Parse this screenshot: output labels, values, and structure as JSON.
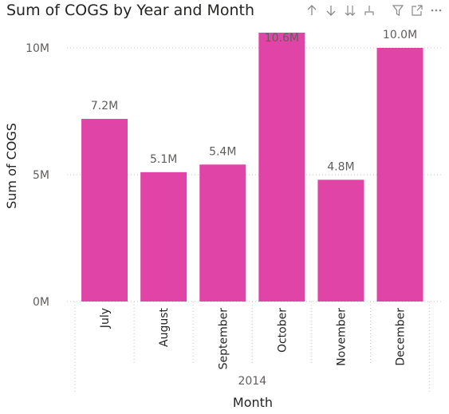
{
  "visual": {
    "title": "Sum of COGS by Year and Month",
    "icons": [
      "sort-up-icon",
      "sort-down-icon",
      "expand-all-down-icon",
      "drill-hierarchy-icon",
      "filter-icon",
      "focus-mode-icon",
      "more-options-icon"
    ],
    "colors": {
      "bar": "#E044A7",
      "grid": "#C8C6C4",
      "text": "#252423",
      "label": "#605E5C",
      "icon": "#8A8886"
    }
  },
  "chart_data": {
    "type": "bar",
    "title": "Sum of COGS by Year and Month",
    "xlabel": "Month",
    "ylabel": "Sum of COGS",
    "x_group_label": "2014",
    "categories": [
      "July",
      "August",
      "September",
      "October",
      "November",
      "December"
    ],
    "values": [
      7200000,
      5100000,
      5400000,
      10600000,
      4800000,
      10000000
    ],
    "data_labels": [
      "7.2M",
      "5.1M",
      "5.4M",
      "10.6M",
      "4.8M",
      "10.0M"
    ],
    "yticks": [
      0,
      5000000,
      10000000
    ],
    "ytick_labels": [
      "0M",
      "5M",
      "10M"
    ],
    "ylim": [
      0,
      10600000
    ],
    "grid": true,
    "legend": "none"
  }
}
